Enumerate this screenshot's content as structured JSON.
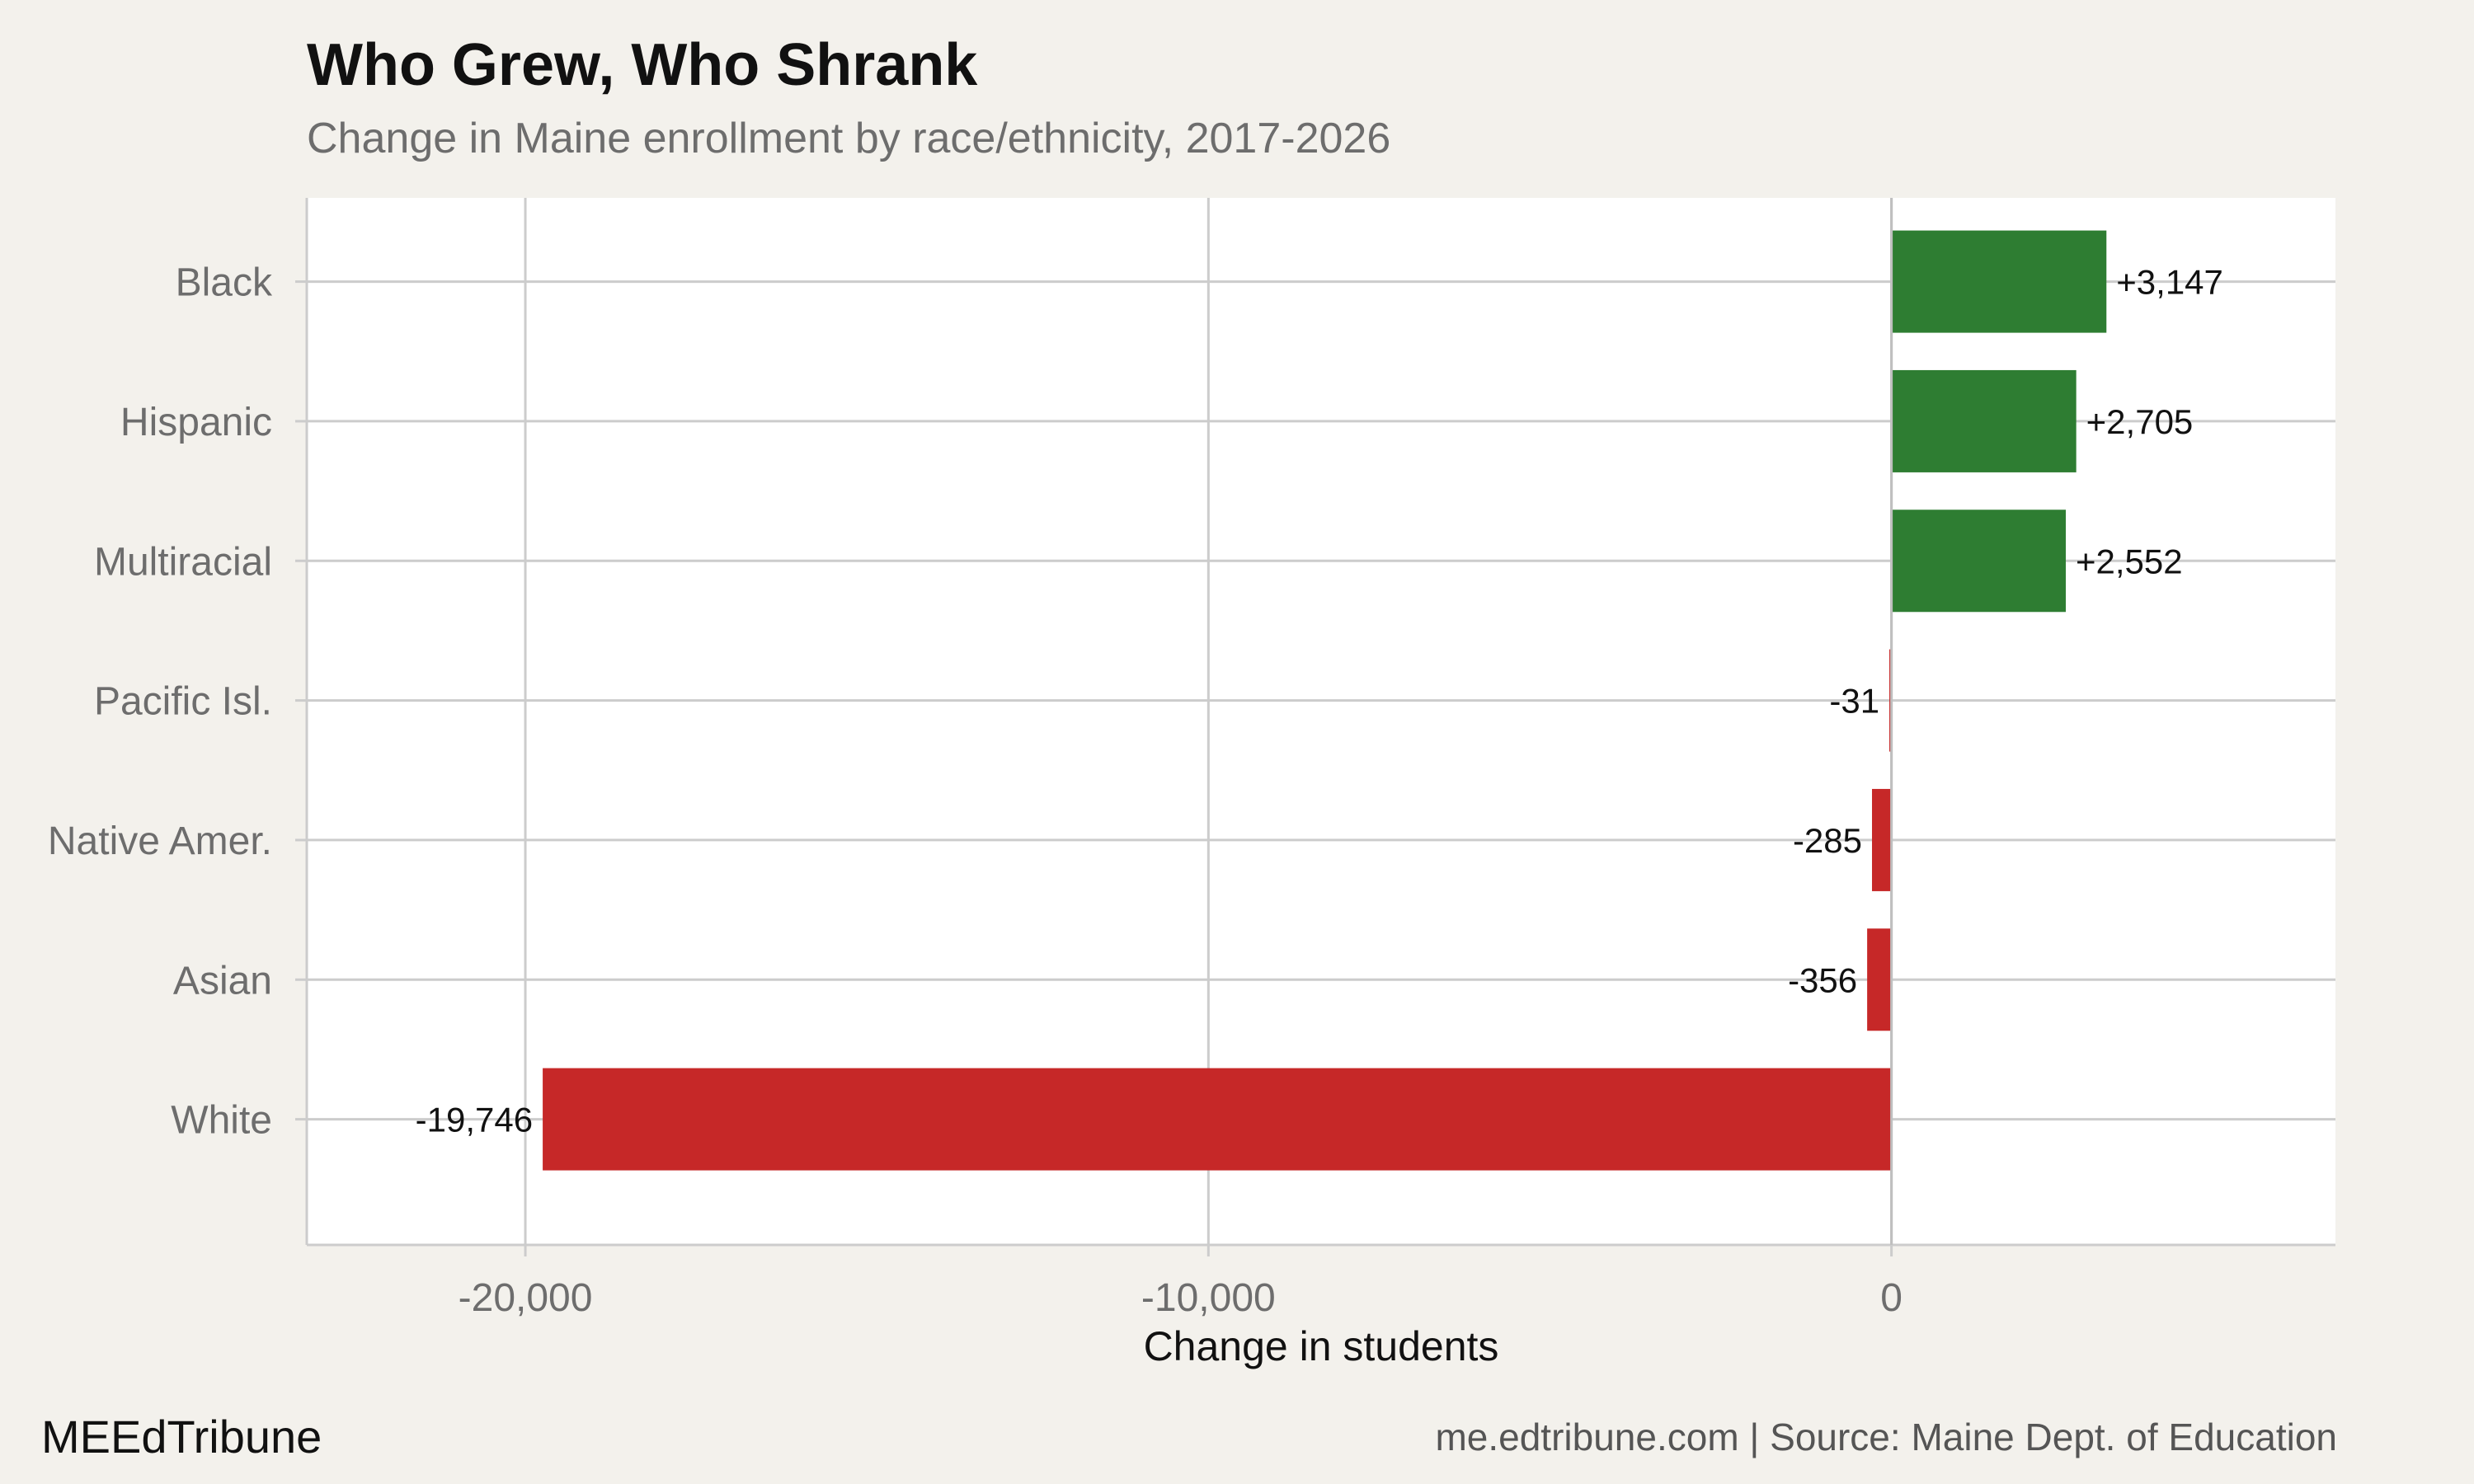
{
  "chart_data": {
    "type": "bar",
    "orientation": "horizontal",
    "title": "Who Grew, Who Shrank",
    "subtitle": "Change in Maine enrollment by race/ethnicity, 2017-2026",
    "xlabel": "Change in students",
    "ylabel": "",
    "categories": [
      "Black",
      "Hispanic",
      "Multiracial",
      "Pacific Isl.",
      "Native Amer.",
      "Asian",
      "White"
    ],
    "values": [
      3147,
      2705,
      2552,
      -31,
      -285,
      -356,
      -19746
    ],
    "data_labels": [
      "+3,147",
      "+2,705",
      "+2,552",
      "-31",
      "-285",
      "-356",
      "-19,746"
    ],
    "xlim": [
      -23200,
      6500
    ],
    "xticks": [
      -20000,
      -10000,
      0
    ],
    "xtick_labels": [
      "-20,000",
      "-10,000",
      "0"
    ],
    "grid": true,
    "legend": "none",
    "colors": {
      "positive": "#2e7d32",
      "negative": "#c62828",
      "panel": "#ffffff",
      "background": "#f3f1ec",
      "grid": "#cccccc"
    }
  },
  "footer": {
    "brand": "MEEdTribune",
    "source": "me.edtribune.com | Source: Maine Dept. of Education"
  }
}
